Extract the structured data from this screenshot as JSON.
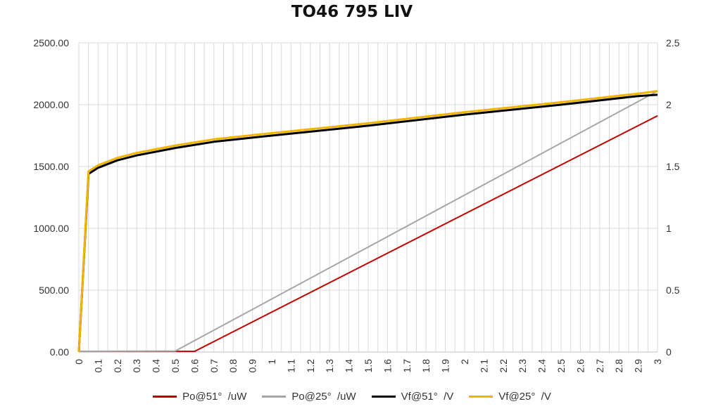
{
  "chart_data": {
    "type": "line",
    "title": "TO46 795 LIV",
    "xlabel": "",
    "ylabel_left": "",
    "ylabel_right": "",
    "grid": true,
    "legend_position": "bottom",
    "xlim": [
      0,
      3
    ],
    "ylim_left": [
      0,
      2500
    ],
    "ylim_right": [
      0,
      2.5
    ],
    "x_ticks": [
      "0",
      "0.1",
      "0.2",
      "0.3",
      "0.4",
      "0.5",
      "0.6",
      "0.7",
      "0.8",
      "0.9",
      "1",
      "1.1",
      "1.2",
      "1.3",
      "1.4",
      "1.5",
      "1.6",
      "1.7",
      "1.8",
      "1.9",
      "2",
      "2.1",
      "2.2",
      "2.3",
      "2.4",
      "2.5",
      "2.6",
      "2.7",
      "2.8",
      "2.9",
      "3"
    ],
    "y_left_ticks": [
      "0.00",
      "500.00",
      "1000.00",
      "1500.00",
      "2000.00",
      "2500.00"
    ],
    "y_right_ticks": [
      "0",
      "0.5",
      "1",
      "1.5",
      "2",
      "2.5"
    ],
    "series": [
      {
        "name": "Po@51°  /uW",
        "axis": "left",
        "color": "#c00000",
        "x": [
          0,
          0.6,
          3
        ],
        "y": [
          5,
          5,
          1910
        ]
      },
      {
        "name": "Po@25°  /uW",
        "axis": "left",
        "color": "#a6a6a6",
        "x": [
          0,
          0.5,
          3
        ],
        "y": [
          5,
          8,
          2110
        ]
      },
      {
        "name": "Vf@51°  /V",
        "axis": "right",
        "color": "#000000",
        "x": [
          0,
          0.05,
          0.1,
          0.2,
          0.3,
          0.5,
          0.7,
          1.0,
          1.5,
          2.0,
          2.5,
          2.9,
          3.0
        ],
        "y": [
          0,
          1.44,
          1.49,
          1.55,
          1.59,
          1.65,
          1.7,
          1.75,
          1.83,
          1.92,
          2.0,
          2.07,
          2.08
        ]
      },
      {
        "name": "Vf@25°  /V",
        "axis": "right",
        "color": "#f0b400",
        "x": [
          0,
          0.05,
          0.1,
          0.2,
          0.3,
          0.5,
          0.7,
          1.0,
          1.5,
          2.0,
          2.5,
          2.9,
          3.0
        ],
        "y": [
          0,
          1.46,
          1.51,
          1.57,
          1.61,
          1.67,
          1.72,
          1.77,
          1.85,
          1.94,
          2.02,
          2.09,
          2.11
        ]
      }
    ]
  }
}
